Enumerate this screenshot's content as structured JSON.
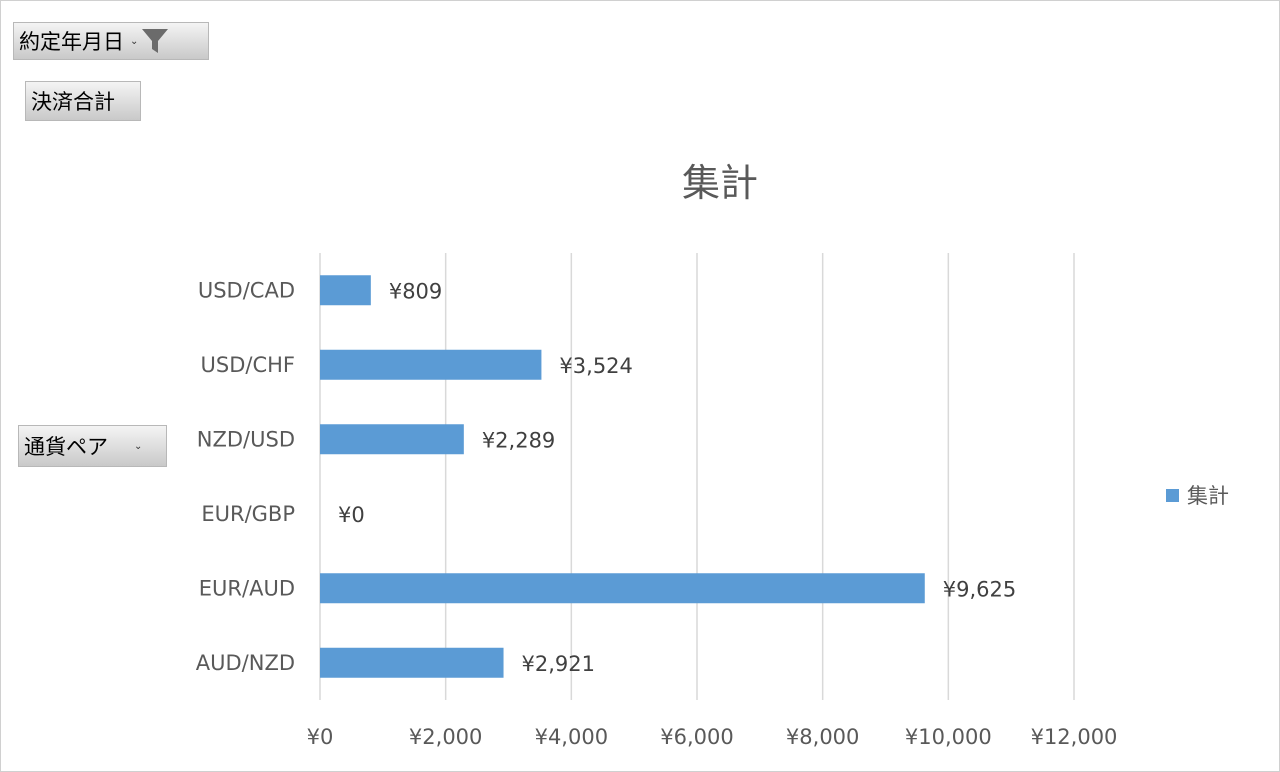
{
  "filters": {
    "date_field": "約定年月日",
    "value_field": "決済合計",
    "row_field": "通貨ペア"
  },
  "colors": {
    "bar": "#5b9bd5",
    "grid": "#d9d9d9",
    "axis_text": "#595959",
    "title_text": "#595959"
  },
  "chart_data": {
    "type": "bar",
    "orientation": "horizontal",
    "title": "集計",
    "categories": [
      "USD/CAD",
      "USD/CHF",
      "NZD/USD",
      "EUR/GBP",
      "EUR/AUD",
      "AUD/NZD"
    ],
    "series": [
      {
        "name": "集計",
        "values": [
          809,
          3524,
          2289,
          0,
          9625,
          2921
        ],
        "labels": [
          "¥809",
          "¥3,524",
          "¥2,289",
          "¥0",
          "¥9,625",
          "¥2,921"
        ]
      }
    ],
    "xlim": [
      0,
      12000
    ],
    "xticks": [
      0,
      2000,
      4000,
      6000,
      8000,
      10000,
      12000
    ],
    "xtick_labels": [
      "¥0",
      "¥2,000",
      "¥4,000",
      "¥6,000",
      "¥8,000",
      "¥10,000",
      "¥12,000"
    ],
    "grid": true,
    "legend": "right",
    "legend_entries": [
      "集計"
    ]
  }
}
